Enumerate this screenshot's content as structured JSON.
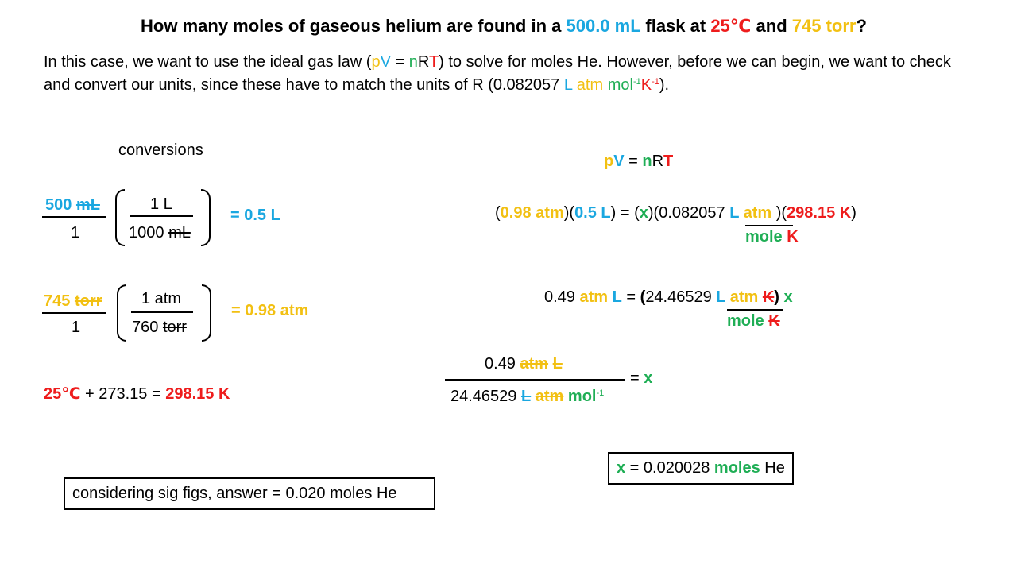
{
  "title": {
    "part1": "How many moles of gaseous helium are found in a ",
    "volume": "500.0 mL",
    "part2": " flask at ",
    "temp": "25℃",
    "part3": " and ",
    "pressure": "745 torr",
    "part4": "?"
  },
  "intro": {
    "line1_a": "In this case, we want to use the ideal gas law (",
    "p": "p",
    "V": "V",
    "eq": " = ",
    "n": "n",
    "R": "R",
    "T": "T",
    "line1_b": ") to solve for moles He. However, before we can begin, we want to check and convert our units, since these have to match the units of R (0.082057 ",
    "L": "L",
    "atm": " atm",
    "mol": " mol",
    "exp1": "-1",
    "K": "K",
    "exp2": "-1",
    "end": ")."
  },
  "conversions": {
    "heading": "conversions",
    "volume": {
      "num_value": "500",
      "num_unit": "mL",
      "den": "1",
      "f_num": "1 L",
      "f_den_value": "1000",
      "f_den_unit": "mL",
      "result": "= 0.5 L"
    },
    "pressure": {
      "num_value": "745",
      "num_unit": "torr",
      "den": "1",
      "f_num": "1 atm",
      "f_den_value": "760",
      "f_den_unit": "torr",
      "result": "= 0.98 atm"
    },
    "temperature": {
      "celsius": "25℃",
      "add": " + 273.15 = ",
      "kelvin": "298.15 K"
    }
  },
  "solution": {
    "eq_p": "p",
    "eq_V": "V",
    "eq_mid": " = ",
    "eq_n": "n",
    "eq_R": "R",
    "eq_T": "T",
    "step1": {
      "o1": "(",
      "p": "0.98 atm",
      "c1": ")(",
      "v": "0.5 L",
      "c2": ") = (",
      "x": "x",
      "c3": ")(0.082057 ",
      "L": "L",
      "atm": " atm",
      "c4": " )(",
      "t": "298.15 K",
      "c5": ")",
      "mole": "mole",
      "K": "K"
    },
    "step2": {
      "value": "0.49 ",
      "atm": "atm",
      "L": " L",
      "mid": " = ",
      "paren": "(",
      "num": "24.46529 ",
      "nL": "L",
      "natm": " atm",
      "nK": "K",
      "close": ")",
      "x": " x",
      "mole": "mole",
      "K": "K"
    },
    "step3": {
      "num_value": "0.49 ",
      "num_atm": "atm",
      "num_L": "L",
      "den_value": "24.46529 ",
      "den_L": "L",
      "den_atm": "atm",
      "den_mol": "mol",
      "den_exp": "-1",
      "eq": "= ",
      "x": "x"
    },
    "result": {
      "x": "x",
      "text": " = 0.020028 ",
      "moles": "moles",
      "he": " He"
    }
  },
  "answer": "considering sig figs, answer = 0.020 moles He",
  "colors": {
    "volume": "#1aa7e0",
    "pressure": "#f2c012",
    "moles": "#1fae55",
    "temperature": "#ee1c1c"
  }
}
